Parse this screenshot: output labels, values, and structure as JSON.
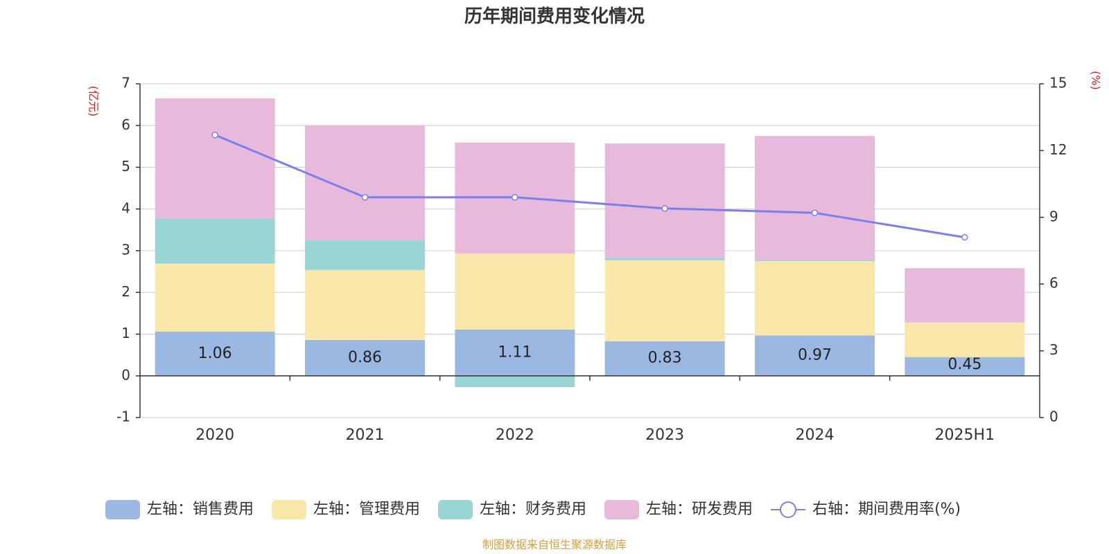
{
  "chart_data": {
    "type": "bar",
    "title": "历年期间费用变化情况",
    "categories": [
      "2020",
      "2021",
      "2022",
      "2023",
      "2024",
      "2025H1"
    ],
    "left_axis": {
      "unit": "(亿元)",
      "ylim": [
        -1,
        7
      ],
      "ticks": [
        "-1",
        "0",
        "1",
        "2",
        "3",
        "4",
        "5",
        "6",
        "7"
      ]
    },
    "right_axis": {
      "unit": "(%)",
      "ylim": [
        0,
        15
      ],
      "ticks": [
        "0",
        "3",
        "6",
        "9",
        "12",
        "15"
      ]
    },
    "series": [
      {
        "name": "左轴：销售费用",
        "axis": "left",
        "color": "#9bb8e2",
        "values": [
          1.06,
          0.86,
          1.11,
          0.83,
          0.97,
          0.45
        ],
        "labels": [
          "1.06",
          "0.86",
          "1.11",
          "0.83",
          "0.97",
          "0.45"
        ]
      },
      {
        "name": "左轴：管理费用",
        "axis": "left",
        "color": "#f8e7a9",
        "values": [
          1.63,
          1.68,
          1.82,
          1.94,
          1.78,
          0.83
        ]
      },
      {
        "name": "左轴：财务费用",
        "axis": "left",
        "color": "#9ad5d6",
        "values": [
          1.08,
          0.72,
          -0.27,
          0.06,
          0.03,
          0.0
        ]
      },
      {
        "name": "左轴：研发费用",
        "axis": "left",
        "color": "#e7b9da",
        "values": [
          2.88,
          2.75,
          2.66,
          2.74,
          2.97,
          1.3
        ]
      },
      {
        "name": "右轴：期间费用率(%)",
        "axis": "right",
        "type": "line",
        "color": "#7b7ff0",
        "values": [
          12.7,
          9.9,
          9.9,
          9.4,
          9.2,
          8.1
        ]
      }
    ],
    "grid": true,
    "legend": "bottom",
    "source": "制图数据来自恒生聚源数据库"
  }
}
